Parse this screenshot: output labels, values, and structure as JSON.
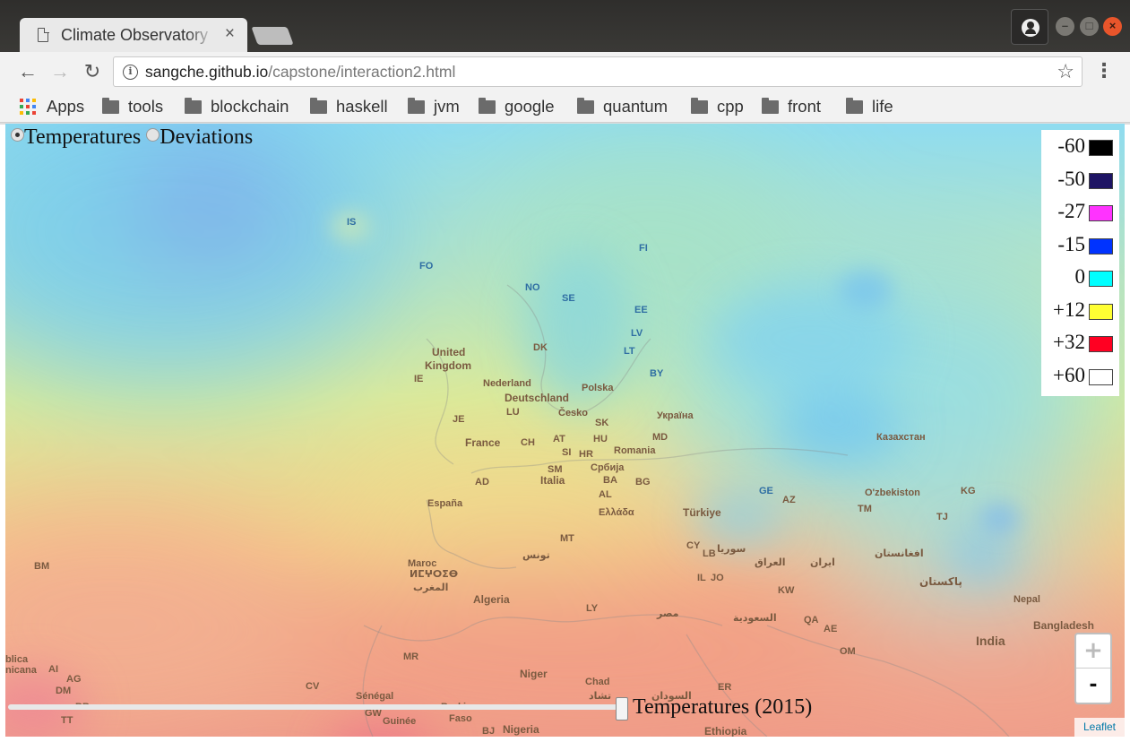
{
  "browser": {
    "tab": {
      "title": "Climate Observatory",
      "close": "×"
    },
    "url": {
      "host": "sangche.github.io",
      "path": "/capstone/interaction2.html"
    },
    "bookmarks": [
      "Apps",
      "tools",
      "blockchain",
      "haskell",
      "jvm",
      "google",
      "quantum",
      "cpp",
      "front",
      "life"
    ],
    "glyphs": {
      "back": "←",
      "forward": "→",
      "reload": "↻",
      "star": "☆",
      "menu": "⋮",
      "info": "i",
      "minimize": "–",
      "maximize": "□",
      "close": "×"
    }
  },
  "controls": {
    "modes": [
      {
        "label": "Temperatures",
        "selected": true
      },
      {
        "label": "Deviations",
        "selected": false
      }
    ],
    "slider_caption": "Temperatures (2015)",
    "zoom_in": "+",
    "zoom_out": "-",
    "attribution": "Leaflet"
  },
  "legend": [
    {
      "label": "-60",
      "color": "#000000"
    },
    {
      "label": "-50",
      "color": "#1e1464"
    },
    {
      "label": "-27",
      "color": "#ff33ff"
    },
    {
      "label": "-15",
      "color": "#0033ff"
    },
    {
      "label": "0",
      "color": "#00ffff"
    },
    {
      "label": "+12",
      "color": "#ffff33"
    },
    {
      "label": "+32",
      "color": "#ff0022"
    },
    {
      "label": "+60",
      "color": "#ffffff"
    }
  ],
  "map_labels": [
    "IS",
    "FO",
    "NO",
    "SE",
    "FI",
    "EE",
    "LV",
    "LT",
    "BY",
    "DK",
    "IE",
    "United",
    "Kingdom",
    "Nederland",
    "Deutschland",
    "Polska",
    "LU",
    "Česko",
    "SK",
    "Україна",
    "JE",
    "France",
    "CH",
    "AT",
    "HU",
    "MD",
    "Romania",
    "SI",
    "HR",
    "Србија",
    "Казахстан",
    "SM",
    "Italia",
    "BA",
    "AD",
    "España",
    "AL",
    "BG",
    "GE",
    "AZ",
    "O'zbekiston",
    "KG",
    "TM",
    "TJ",
    "Ελλάδα",
    "Türkiye",
    "Maroc",
    "المغرب",
    "ⵍⵎⵖⵔⵉⴱ",
    "MT",
    "تونس",
    "CY",
    "LB",
    "سوريا",
    "العراق",
    "ایران",
    "افغانستان",
    "IL",
    "JO",
    "KW",
    "پاکستان",
    "BM",
    "Algeria",
    "LY",
    "مصر",
    "السعودية",
    "QA",
    "AE",
    "Nepal",
    "Bangladesh",
    "India",
    "OM",
    "MR",
    "Niger",
    "Chad",
    "تشاد",
    "السودان",
    "ER",
    "Ethiopia",
    "Sénégal",
    "GW",
    "Guinée",
    "Burkina",
    "Faso",
    "BJ",
    "Nigeria",
    "CV",
    "blica",
    "nicana",
    "AI",
    "AG",
    "DM",
    "BB",
    "TT"
  ]
}
